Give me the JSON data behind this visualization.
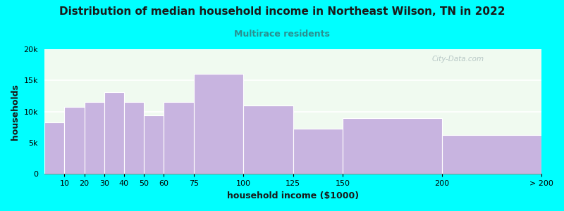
{
  "title": "Distribution of median household income in Northeast Wilson, TN in 2022",
  "subtitle": "Multirace residents",
  "xlabel": "household income ($1000)",
  "ylabel": "households",
  "background_color": "#00FFFF",
  "bar_color": "#c8b4e0",
  "bar_edge_color": "#ffffff",
  "plot_bg_top": "#f0faf0",
  "plot_bg_bottom": "#f8f0ff",
  "subtitle_color": "#2a9090",
  "title_color": "#1a1a1a",
  "watermark_text": "City-Data.com",
  "bin_edges": [
    0,
    10,
    20,
    30,
    40,
    50,
    60,
    75,
    100,
    125,
    150,
    200,
    250
  ],
  "bin_labels": [
    "10",
    "20",
    "30",
    "40",
    "50",
    "60",
    "75",
    "100",
    "125",
    "150",
    "200",
    "> 200"
  ],
  "values": [
    8300,
    10800,
    11600,
    13100,
    11600,
    9400,
    11500,
    16100,
    11000,
    7300,
    9000,
    6200
  ],
  "ylim": [
    0,
    20000
  ],
  "yticks": [
    0,
    5000,
    10000,
    15000,
    20000
  ],
  "ytick_labels": [
    "0",
    "5k",
    "10k",
    "15k",
    "20k"
  ],
  "title_fontsize": 11,
  "subtitle_fontsize": 9,
  "axis_label_fontsize": 9,
  "tick_fontsize": 8
}
